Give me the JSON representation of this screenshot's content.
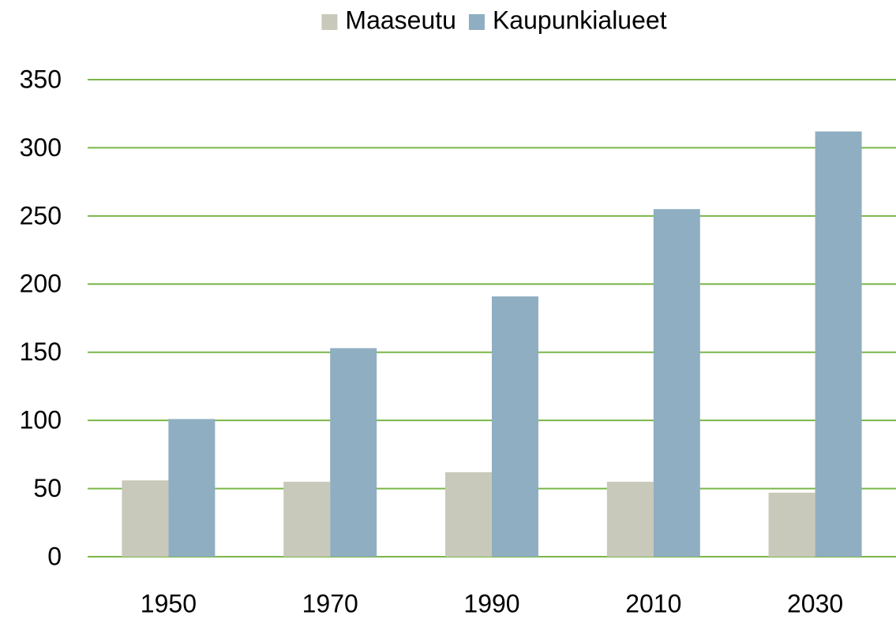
{
  "chart_data": {
    "type": "bar",
    "categories": [
      "1950",
      "1970",
      "1990",
      "2010",
      "2030"
    ],
    "series": [
      {
        "name": "Maaseutu",
        "color": "#c9c9bb",
        "values": [
          56,
          55,
          62,
          55,
          47
        ]
      },
      {
        "name": "Kaupunkialueet",
        "color": "#8faec1",
        "values": [
          101,
          153,
          191,
          255,
          312
        ]
      }
    ],
    "ylim": [
      0,
      350
    ],
    "yticks": [
      0,
      50,
      100,
      150,
      200,
      250,
      300,
      350
    ],
    "grid": true,
    "grid_color": "#7ab648",
    "legend": "top"
  }
}
